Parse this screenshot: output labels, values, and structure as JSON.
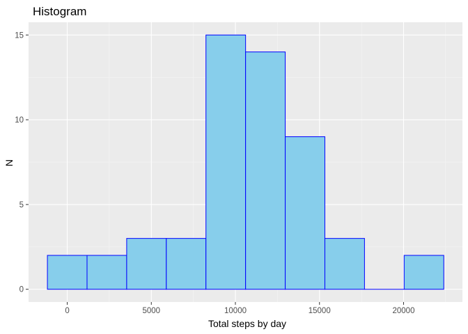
{
  "chart_data": {
    "type": "bar",
    "subtype": "histogram",
    "title": "Histogram",
    "xlabel": "Total steps by day",
    "ylabel": "N",
    "bin_width": 2357,
    "bins": [
      {
        "start": -1179,
        "end": 1178,
        "count": 2
      },
      {
        "start": 1178,
        "end": 3535,
        "count": 2
      },
      {
        "start": 3535,
        "end": 5892,
        "count": 3
      },
      {
        "start": 5892,
        "end": 8249,
        "count": 3
      },
      {
        "start": 8249,
        "end": 10606,
        "count": 15
      },
      {
        "start": 10606,
        "end": 12963,
        "count": 14
      },
      {
        "start": 12963,
        "end": 15320,
        "count": 9
      },
      {
        "start": 15320,
        "end": 17677,
        "count": 3
      },
      {
        "start": 17677,
        "end": 20034,
        "count": 0
      },
      {
        "start": 20034,
        "end": 22391,
        "count": 2
      }
    ],
    "xlim": [
      -2300,
      23500
    ],
    "ylim": [
      -0.75,
      15.75
    ],
    "x_ticks": [
      0,
      5000,
      10000,
      15000,
      20000
    ],
    "x_tick_labels": [
      "0",
      "5000",
      "10000",
      "15000",
      "20000"
    ],
    "y_ticks": [
      0,
      5,
      10,
      15
    ],
    "y_tick_labels": [
      "0",
      "5",
      "10",
      "15"
    ],
    "grid": true,
    "legend": "none",
    "colors": {
      "panel_background": "#ebebeb",
      "grid_major": "#ffffff",
      "bar_fill": "#87ceeb",
      "bar_outline": "#0000ff",
      "tick_text": "#4d4d4d",
      "tick_mark": "#333333"
    }
  }
}
